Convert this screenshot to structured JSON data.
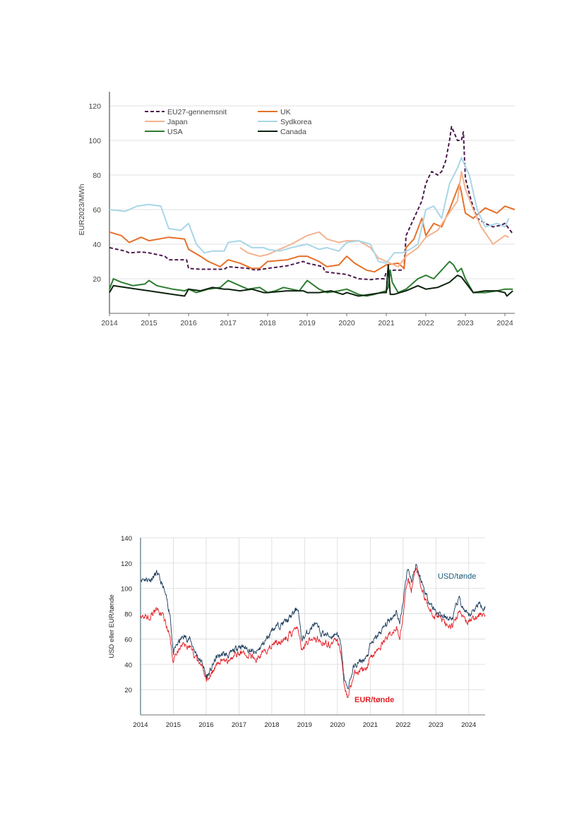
{
  "chart_data": [
    {
      "type": "line",
      "ylabel": "EUR2023/MWh",
      "ylim": [
        0,
        120
      ],
      "yticks": [
        20,
        40,
        60,
        80,
        100,
        120
      ],
      "xlim": [
        2014,
        2024.25
      ],
      "xticks": [
        "2014",
        "2015",
        "2016",
        "2017",
        "2018",
        "2019",
        "2020",
        "2021",
        "2022",
        "2023",
        "2024"
      ],
      "grid": true,
      "legend_position": "top-left",
      "series": [
        {
          "name": "EU27-gennemsnit",
          "color": "#4b1a4d",
          "dash": true,
          "x": [
            2014,
            2014.4,
            2014.5,
            2014.8,
            2015,
            2015.4,
            2015.5,
            2015.95,
            2016,
            2016.3,
            2016.5,
            2016.9,
            2017,
            2017.5,
            2017.7,
            2018,
            2018.5,
            2018.9,
            2019,
            2019.4,
            2019.45,
            2019.8,
            2020,
            2020.3,
            2020.6,
            2020.8,
            2020.95,
            2021,
            2021.2,
            2021.4,
            2021.45,
            2021.5,
            2021.7,
            2021.8,
            2021.9,
            2022,
            2022.1,
            2022.15,
            2022.3,
            2022.4,
            2022.5,
            2022.6,
            2022.65,
            2022.8,
            2022.9,
            2022.95,
            2023,
            2023.15,
            2023.3,
            2023.5,
            2023.7,
            2023.9,
            2024,
            2024.2
          ],
          "y": [
            38,
            36,
            35,
            35.5,
            35,
            33,
            31,
            31,
            26,
            25.5,
            25.5,
            25.5,
            27,
            26,
            25,
            26,
            27.5,
            30,
            29,
            27,
            24,
            23,
            22.5,
            20,
            19.5,
            20,
            20,
            24,
            25,
            25,
            26,
            45,
            55,
            60,
            65,
            75,
            80,
            82,
            80,
            82,
            88,
            100,
            108,
            100,
            100,
            105,
            78,
            65,
            55,
            52,
            50,
            51,
            52,
            46
          ]
        },
        {
          "name": "UK",
          "color": "#e5712a",
          "dash": false,
          "x": [
            2014,
            2014.3,
            2014.5,
            2014.8,
            2015,
            2015.5,
            2015.9,
            2016,
            2016.3,
            2016.5,
            2016.8,
            2017,
            2017.3,
            2017.6,
            2017.8,
            2018,
            2018.5,
            2018.8,
            2019,
            2019.3,
            2019.5,
            2019.8,
            2020,
            2020.2,
            2020.5,
            2020.7,
            2021,
            2021.3,
            2021.45,
            2021.5,
            2021.7,
            2021.9,
            2022,
            2022.2,
            2022.4,
            2022.6,
            2022.85,
            2022.9,
            2023,
            2023.2,
            2023.5,
            2023.8,
            2024,
            2024.25
          ],
          "y": [
            47,
            45,
            41,
            44,
            42,
            44,
            43,
            37,
            33,
            30,
            27,
            31,
            29,
            26,
            26,
            30,
            31,
            33,
            33,
            30,
            27,
            28,
            33,
            29,
            25,
            24,
            28,
            29,
            26,
            38,
            43,
            55,
            45,
            52,
            50,
            60,
            75,
            70,
            58,
            55,
            61,
            58,
            62,
            60
          ]
        },
        {
          "name": "Japan",
          "color": "#f3b38f",
          "dash": false,
          "x": [
            2017.3,
            2017.5,
            2017.8,
            2018,
            2018.3,
            2018.6,
            2019,
            2019.3,
            2019.5,
            2019.8,
            2020,
            2020.3,
            2020.6,
            2020.8,
            2021,
            2021.3,
            2021.5,
            2021.8,
            2022,
            2022.3,
            2022.5,
            2022.8,
            2022.9,
            2023,
            2023.2,
            2023.4,
            2023.7,
            2024,
            2024.1
          ],
          "y": [
            38,
            35,
            33,
            34,
            37,
            40,
            45,
            47,
            43,
            41,
            42,
            42,
            38,
            32,
            30,
            27,
            33,
            38,
            44,
            48,
            55,
            65,
            82,
            72,
            60,
            50,
            40,
            45,
            44
          ]
        },
        {
          "name": "Sydkorea",
          "color": "#a9d6e8",
          "dash": false,
          "x": [
            2014,
            2014.4,
            2014.7,
            2015,
            2015.3,
            2015.5,
            2015.8,
            2016,
            2016.2,
            2016.4,
            2016.6,
            2016.9,
            2017,
            2017.3,
            2017.6,
            2017.9,
            2018,
            2018.3,
            2018.6,
            2019,
            2019.3,
            2019.5,
            2019.8,
            2020,
            2020.3,
            2020.6,
            2020.8,
            2021,
            2021.2,
            2021.4,
            2021.6,
            2021.8,
            2022,
            2022.2,
            2022.4,
            2022.6,
            2022.8,
            2022.9,
            2023,
            2023.1,
            2023.3,
            2023.5,
            2023.8,
            2024,
            2024.1
          ],
          "y": [
            60,
            59,
            62,
            63,
            62,
            49,
            48,
            52,
            40,
            35,
            36,
            36,
            41,
            42,
            38,
            38,
            37,
            36,
            38,
            40,
            37,
            38,
            36,
            41,
            42,
            40,
            30,
            29,
            35,
            35,
            37,
            40,
            60,
            62,
            55,
            75,
            84,
            90,
            85,
            80,
            60,
            50,
            52,
            50,
            55
          ]
        },
        {
          "name": "USA",
          "color": "#2e7d32",
          "dash": false,
          "x": [
            2014,
            2014.1,
            2014.3,
            2014.6,
            2014.9,
            2015,
            2015.2,
            2015.4,
            2015.6,
            2015.9,
            2016,
            2016.2,
            2016.5,
            2016.8,
            2017,
            2017.3,
            2017.5,
            2017.8,
            2018,
            2018.2,
            2018.4,
            2018.6,
            2018.8,
            2019,
            2019.3,
            2019.5,
            2019.8,
            2020,
            2020.3,
            2020.5,
            2020.7,
            2021,
            2021.05,
            2021.1,
            2021.15,
            2021.3,
            2021.5,
            2021.8,
            2022,
            2022.2,
            2022.4,
            2022.6,
            2022.7,
            2022.8,
            2022.9,
            2023,
            2023.2,
            2023.5,
            2023.8,
            2024,
            2024.2
          ],
          "y": [
            14,
            20,
            18,
            16,
            17,
            19,
            16,
            15,
            14,
            13,
            14,
            12,
            14,
            15,
            19,
            16,
            14,
            15,
            12,
            13,
            15,
            14,
            13,
            19,
            14,
            12,
            13,
            14,
            11,
            10,
            11,
            13,
            15,
            25,
            18,
            12,
            14,
            20,
            22,
            20,
            25,
            30,
            28,
            24,
            26,
            20,
            12,
            12,
            13,
            14,
            14
          ]
        },
        {
          "name": "Canada",
          "color": "#0e2410",
          "dash": false,
          "x": [
            2014,
            2014.1,
            2014.4,
            2014.7,
            2015,
            2015.3,
            2015.6,
            2015.9,
            2016,
            2016.3,
            2016.6,
            2016.9,
            2017,
            2017.3,
            2017.6,
            2017.9,
            2018,
            2018.5,
            2018.9,
            2019,
            2019.3,
            2019.6,
            2019.9,
            2020,
            2020.3,
            2020.6,
            2020.9,
            2021,
            2021.05,
            2021.1,
            2021.2,
            2021.5,
            2021.8,
            2022,
            2022.3,
            2022.6,
            2022.8,
            2022.9,
            2023,
            2023.2,
            2023.5,
            2023.8,
            2024,
            2024.05,
            2024.2
          ],
          "y": [
            12,
            16,
            15,
            14,
            13,
            12,
            11,
            10,
            14,
            13,
            15,
            14,
            14,
            13,
            14,
            12,
            12,
            13,
            13,
            12,
            12,
            13,
            11,
            12,
            10,
            11,
            12,
            12,
            28,
            11,
            11,
            13,
            16,
            14,
            15,
            18,
            22,
            21,
            18,
            12,
            13,
            13,
            12,
            10,
            13
          ]
        }
      ]
    },
    {
      "type": "line",
      "ylabel": "USD eller EUR/tønde",
      "ylim": [
        0,
        140
      ],
      "yticks": [
        20,
        40,
        60,
        80,
        100,
        120,
        140
      ],
      "xlim": [
        2014,
        2024.5
      ],
      "xticks": [
        "2014",
        "2015",
        "2016",
        "2017",
        "2018",
        "2019",
        "2020",
        "2021",
        "2022",
        "2023",
        "2024"
      ],
      "grid": true,
      "series": [
        {
          "name": "USD/tønde",
          "color": "#1b3a5c",
          "x": [
            2014,
            2014.3,
            2014.5,
            2014.7,
            2014.9,
            2015,
            2015.1,
            2015.3,
            2015.5,
            2015.7,
            2015.9,
            2016,
            2016.1,
            2016.3,
            2016.5,
            2016.7,
            2016.9,
            2017,
            2017.3,
            2017.5,
            2017.7,
            2017.9,
            2018,
            2018.3,
            2018.5,
            2018.8,
            2018.9,
            2019,
            2019.3,
            2019.5,
            2019.8,
            2020,
            2020.1,
            2020.2,
            2020.3,
            2020.5,
            2020.7,
            2020.9,
            2021,
            2021.3,
            2021.5,
            2021.8,
            2021.9,
            2022,
            2022.15,
            2022.25,
            2022.4,
            2022.5,
            2022.7,
            2022.9,
            2023,
            2023.3,
            2023.5,
            2023.7,
            2023.9,
            2024,
            2024.3,
            2024.5
          ],
          "y": [
            108,
            107,
            112,
            100,
            80,
            48,
            55,
            62,
            60,
            48,
            40,
            30,
            33,
            45,
            48,
            47,
            52,
            55,
            52,
            48,
            55,
            62,
            68,
            72,
            75,
            85,
            60,
            62,
            72,
            65,
            62,
            65,
            55,
            30,
            20,
            38,
            42,
            45,
            55,
            65,
            72,
            82,
            72,
            90,
            118,
            105,
            120,
            110,
            95,
            85,
            82,
            76,
            76,
            92,
            80,
            78,
            88,
            85
          ]
        },
        {
          "name": "EUR/tønde",
          "color": "#e31e24",
          "x": [
            2014,
            2014.3,
            2014.5,
            2014.7,
            2014.9,
            2015,
            2015.1,
            2015.3,
            2015.5,
            2015.7,
            2015.9,
            2016,
            2016.1,
            2016.3,
            2016.5,
            2016.7,
            2016.9,
            2017,
            2017.3,
            2017.5,
            2017.7,
            2017.9,
            2018,
            2018.3,
            2018.5,
            2018.8,
            2018.9,
            2019,
            2019.3,
            2019.5,
            2019.8,
            2020,
            2020.1,
            2020.2,
            2020.3,
            2020.5,
            2020.7,
            2020.9,
            2021,
            2021.3,
            2021.5,
            2021.8,
            2021.9,
            2022,
            2022.15,
            2022.25,
            2022.4,
            2022.5,
            2022.7,
            2022.9,
            2023,
            2023.3,
            2023.5,
            2023.7,
            2023.9,
            2024,
            2024.3,
            2024.5
          ],
          "y": [
            79,
            78,
            83,
            77,
            62,
            40,
            50,
            55,
            54,
            44,
            36,
            27,
            30,
            40,
            43,
            42,
            48,
            50,
            47,
            44,
            48,
            52,
            56,
            58,
            62,
            70,
            50,
            55,
            62,
            58,
            55,
            58,
            50,
            25,
            14,
            32,
            35,
            38,
            45,
            54,
            60,
            70,
            62,
            80,
            110,
            98,
            118,
            105,
            90,
            80,
            78,
            72,
            70,
            82,
            74,
            72,
            80,
            78
          ]
        }
      ],
      "annotations": [
        {
          "text": "USD/tønde",
          "color": "#1b5e7a"
        },
        {
          "text": "EUR/tønde",
          "color": "#e31e24"
        }
      ]
    }
  ]
}
